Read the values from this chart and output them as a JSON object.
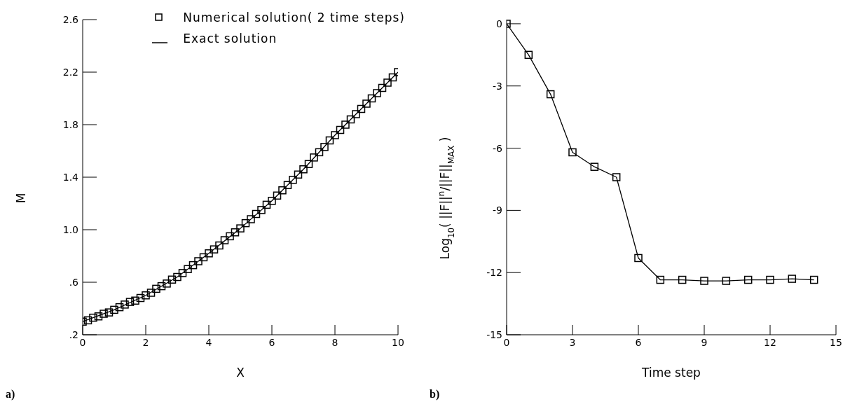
{
  "chart_data": [
    {
      "type": "scatter",
      "xlabel": "X",
      "ylabel": "M",
      "annotations": [
        "a)"
      ],
      "xlim": [
        0,
        10
      ],
      "xticks": [
        0,
        2,
        4,
        6,
        8,
        10
      ],
      "ylim": [
        0.2,
        2.6
      ],
      "yticks": [
        {
          "value": 0.2,
          "label": ".2"
        },
        {
          "value": 0.6,
          "label": ".6"
        },
        {
          "value": 1.0,
          "label": "1.0"
        },
        {
          "value": 1.4,
          "label": "1.4"
        },
        {
          "value": 1.8,
          "label": "1.8"
        },
        {
          "value": 2.2,
          "label": "2.2"
        },
        {
          "value": 2.6,
          "label": "2.6"
        }
      ],
      "grid": false,
      "legend": "top right",
      "series": [
        {
          "name": "Numerical solution(  2 time steps)",
          "marker": "square",
          "color": "#000000",
          "x": [
            0,
            0.167,
            0.333,
            0.5,
            0.667,
            0.833,
            1,
            1.167,
            1.333,
            1.5,
            1.667,
            1.833,
            2,
            2.167,
            2.333,
            2.5,
            2.667,
            2.833,
            3,
            3.167,
            3.333,
            3.5,
            3.667,
            3.833,
            4,
            4.167,
            4.333,
            4.5,
            4.667,
            4.833,
            5,
            5.167,
            5.333,
            5.5,
            5.667,
            5.833,
            6,
            6.167,
            6.333,
            6.5,
            6.667,
            6.833,
            7,
            7.167,
            7.333,
            7.5,
            7.667,
            7.833,
            8,
            8.167,
            8.333,
            8.5,
            8.667,
            8.833,
            9,
            9.167,
            9.333,
            9.5,
            9.667,
            9.833,
            10
          ],
          "values": [
            0.3,
            0.31,
            0.33,
            0.34,
            0.36,
            0.37,
            0.39,
            0.41,
            0.43,
            0.45,
            0.46,
            0.48,
            0.5,
            0.52,
            0.55,
            0.57,
            0.59,
            0.62,
            0.64,
            0.67,
            0.7,
            0.73,
            0.76,
            0.79,
            0.82,
            0.85,
            0.88,
            0.92,
            0.95,
            0.98,
            1.01,
            1.05,
            1.08,
            1.12,
            1.15,
            1.19,
            1.22,
            1.26,
            1.3,
            1.34,
            1.38,
            1.42,
            1.46,
            1.5,
            1.55,
            1.59,
            1.63,
            1.68,
            1.72,
            1.76,
            1.8,
            1.84,
            1.88,
            1.92,
            1.96,
            2.0,
            2.04,
            2.08,
            2.12,
            2.16,
            2.2
          ]
        },
        {
          "name": "Exact solution",
          "type": "line",
          "marker": "none",
          "line_style": "solid",
          "color": "#000000",
          "x": [
            0,
            1,
            2,
            3,
            4,
            5,
            6,
            7,
            8,
            9,
            10
          ],
          "values": [
            0.3,
            0.39,
            0.5,
            0.64,
            0.82,
            1.01,
            1.22,
            1.46,
            1.72,
            1.96,
            2.2
          ]
        }
      ]
    },
    {
      "type": "line",
      "xlabel": "Time step",
      "ylabel": "Log$_{10}$( ||F||$^{n}$/||F||$_{MAX}$ )",
      "annotations": [
        "b)"
      ],
      "xlim": [
        0,
        15
      ],
      "xticks": [
        0,
        3,
        6,
        9,
        12,
        15
      ],
      "ylim": [
        -15,
        0.2
      ],
      "yticks": [
        0,
        -3,
        -6,
        -9,
        -12,
        -15
      ],
      "grid": false,
      "marker": "square",
      "line_style": "solid",
      "series": [
        {
          "color": "#000000",
          "x": [
            0,
            1,
            2,
            3,
            4,
            5,
            6,
            7,
            8,
            9,
            10,
            11,
            12,
            13,
            14
          ],
          "values": [
            0,
            -1.5,
            -3.4,
            -6.2,
            -6.9,
            -7.4,
            -11.3,
            -12.35,
            -12.35,
            -12.4,
            -12.4,
            -12.35,
            -12.35,
            -12.3,
            -12.35
          ]
        }
      ]
    }
  ]
}
